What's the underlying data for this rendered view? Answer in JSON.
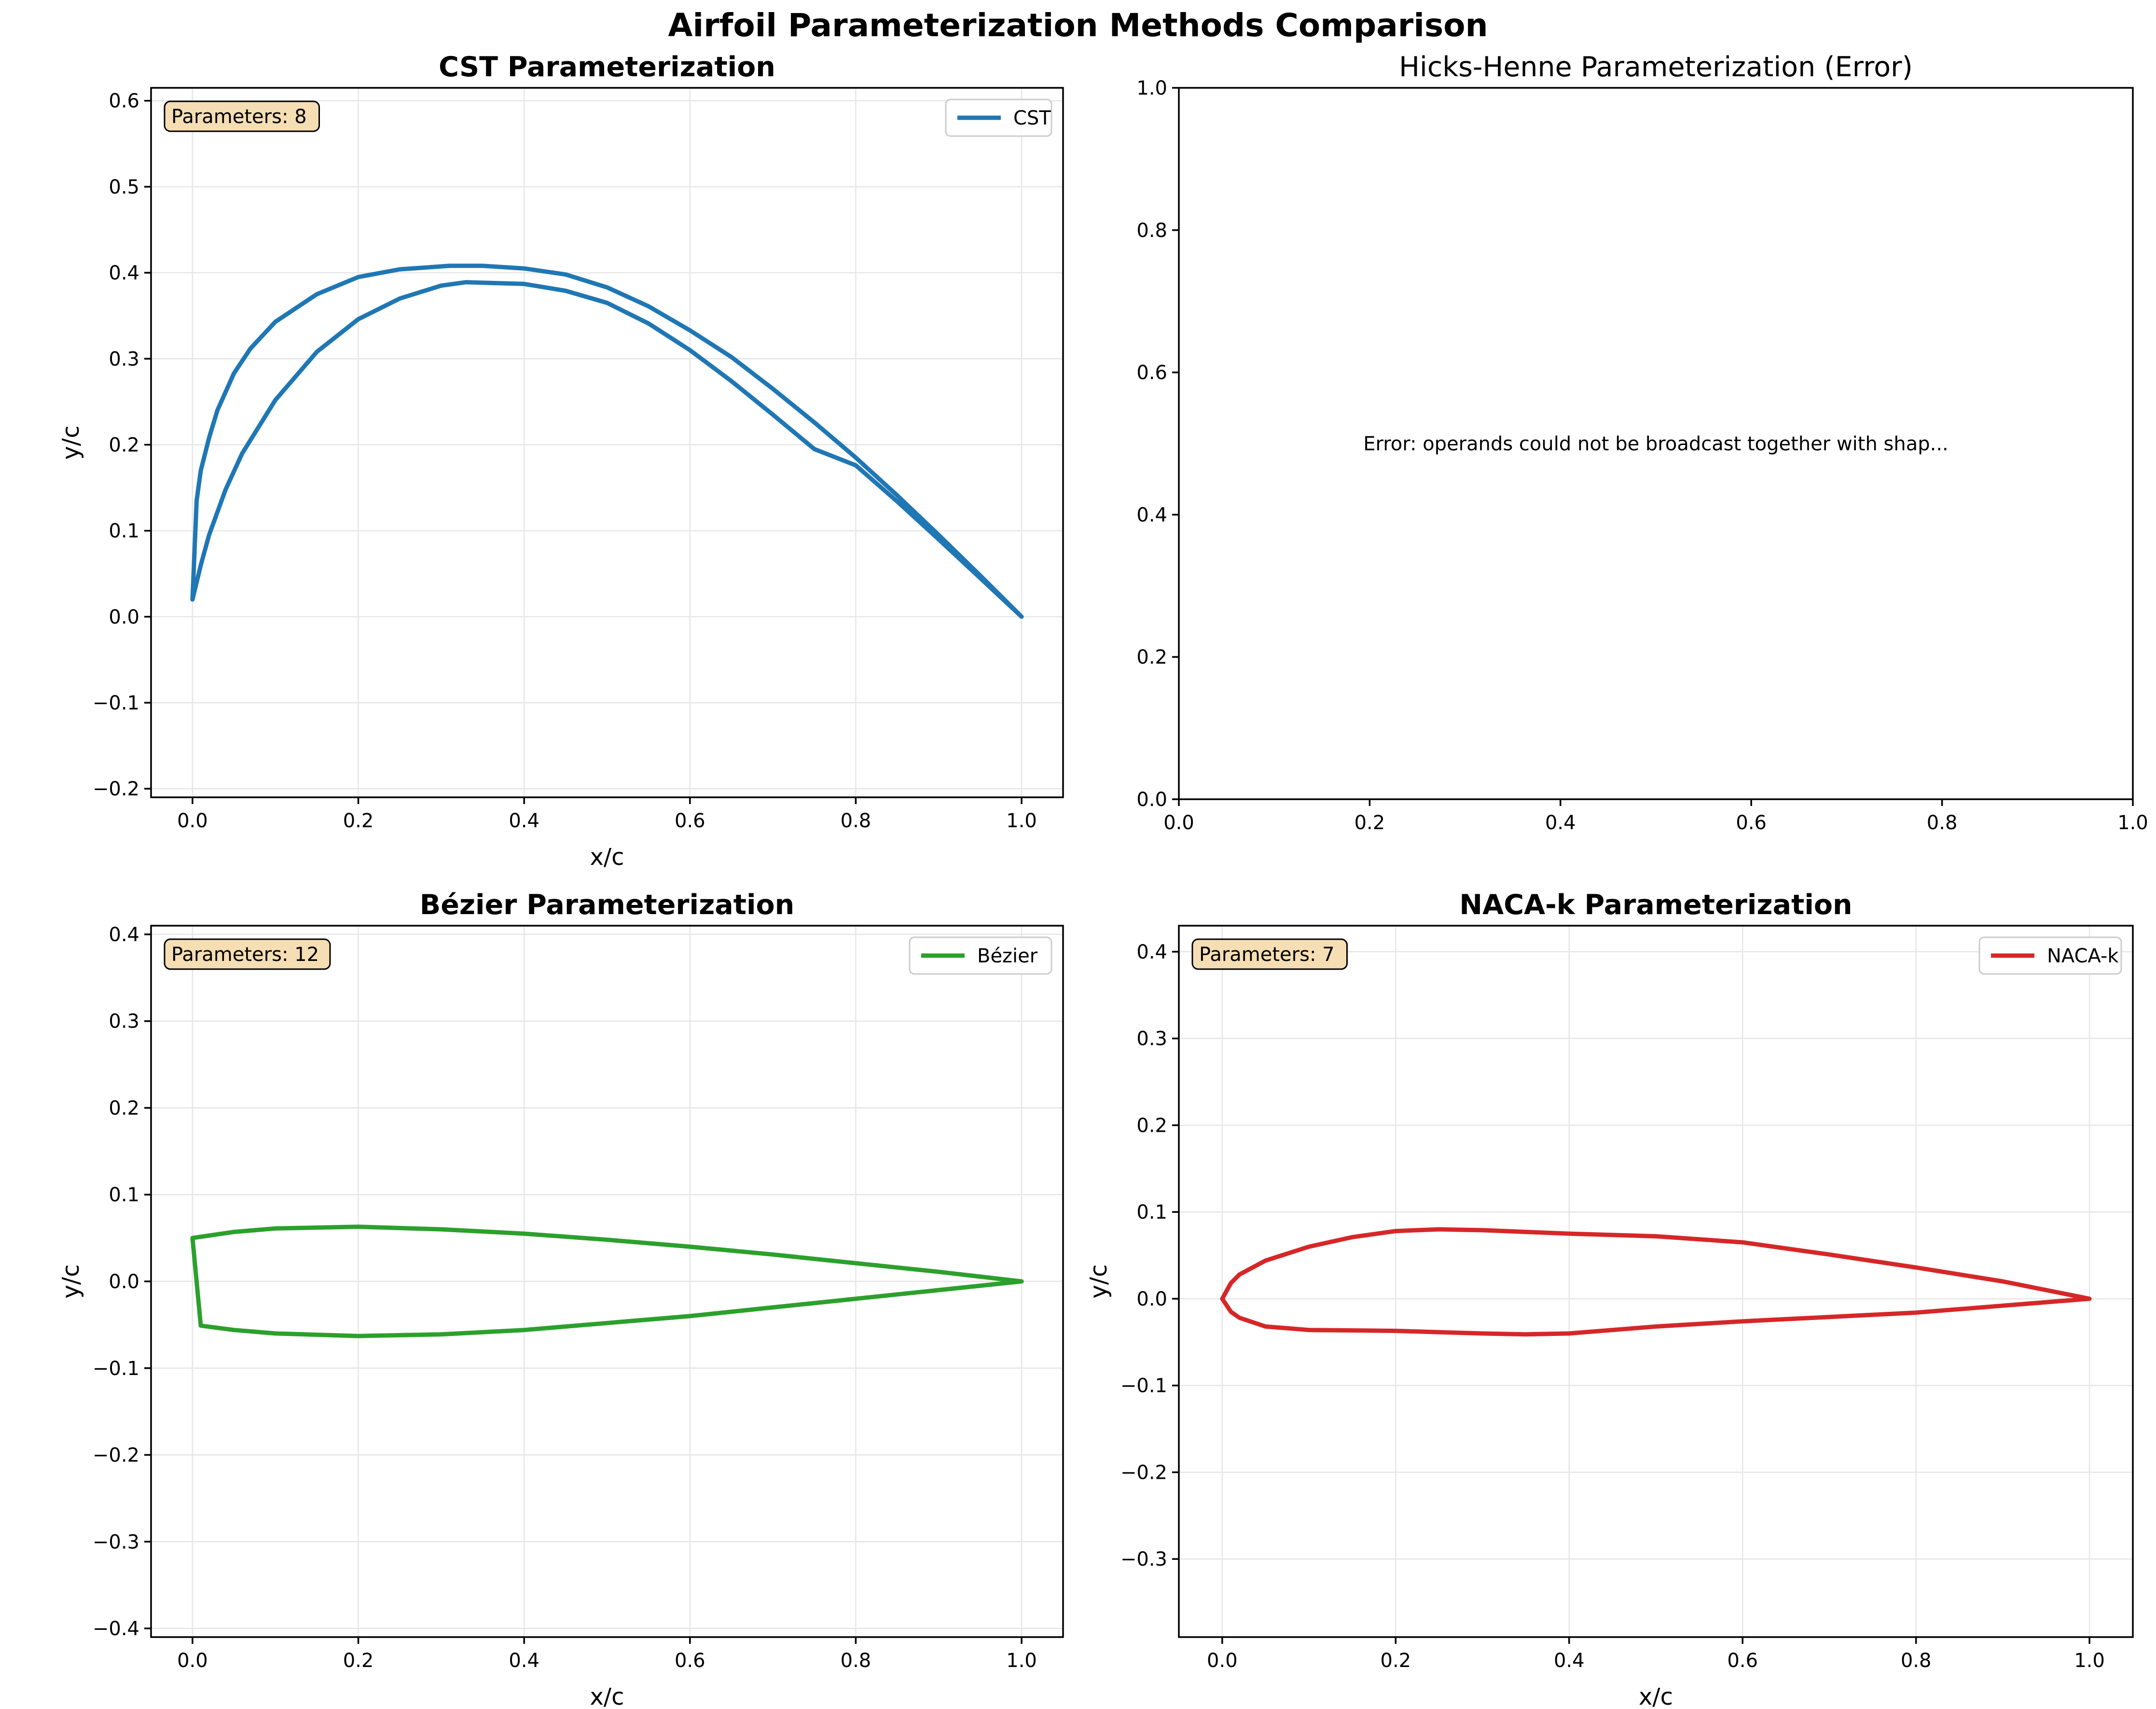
{
  "figure": {
    "title": "Airfoil Parameterization Methods Comparison"
  },
  "colors": {
    "cst": "#1f77b4",
    "bezier": "#2ca02c",
    "naca": "#d62728",
    "badge_fill": "#f5deb3"
  },
  "chart_data": [
    {
      "id": "cst",
      "type": "line",
      "title": "CST Parameterization",
      "title_bold": true,
      "xlabel": "x/c",
      "ylabel": "y/c",
      "xlim": [
        -0.05,
        1.05
      ],
      "ylim": [
        -0.21,
        0.615
      ],
      "xticks": [
        0.0,
        0.2,
        0.4,
        0.6,
        0.8,
        1.0
      ],
      "xtick_labels": [
        "0.0",
        "0.2",
        "0.4",
        "0.6",
        "0.8",
        "1.0"
      ],
      "yticks": [
        -0.2,
        -0.1,
        0.0,
        0.1,
        0.2,
        0.3,
        0.4,
        0.5,
        0.6
      ],
      "ytick_labels": [
        "−0.2",
        "−0.1",
        "0.0",
        "0.1",
        "0.2",
        "0.3",
        "0.4",
        "0.5",
        "0.6"
      ],
      "grid": true,
      "legend": "upper right",
      "annotation": "Parameters: 8",
      "series": [
        {
          "name": "CST",
          "color": "#1f77b4",
          "x": [
            1.0,
            0.95,
            0.9,
            0.85,
            0.8,
            0.75,
            0.7,
            0.65,
            0.6,
            0.55,
            0.5,
            0.45,
            0.4,
            0.35,
            0.31,
            0.25,
            0.2,
            0.15,
            0.1,
            0.07,
            0.05,
            0.03,
            0.02,
            0.01,
            0.005,
            0.0,
            0.005,
            0.01,
            0.02,
            0.04,
            0.06,
            0.1,
            0.15,
            0.2,
            0.25,
            0.3,
            0.33,
            0.4,
            0.45,
            0.5,
            0.55,
            0.6,
            0.65,
            0.7,
            0.75,
            0.8,
            0.85,
            0.9,
            0.95,
            1.0
          ],
          "y": [
            0.0,
            0.048,
            0.095,
            0.141,
            0.185,
            0.226,
            0.265,
            0.302,
            0.333,
            0.361,
            0.383,
            0.398,
            0.405,
            0.408,
            0.408,
            0.404,
            0.395,
            0.375,
            0.343,
            0.312,
            0.283,
            0.24,
            0.208,
            0.17,
            0.135,
            0.02,
            0.04,
            0.06,
            0.095,
            0.148,
            0.19,
            0.252,
            0.308,
            0.346,
            0.37,
            0.385,
            0.389,
            0.387,
            0.379,
            0.365,
            0.341,
            0.31,
            0.274,
            0.235,
            0.195,
            0.176,
            0.134,
            0.09,
            0.045,
            0.0
          ]
        }
      ]
    },
    {
      "id": "hicks",
      "type": "line",
      "title": "Hicks-Henne Parameterization (Error)",
      "title_bold": false,
      "xlabel": "",
      "ylabel": "",
      "xlim": [
        0.0,
        1.0
      ],
      "ylim": [
        0.0,
        1.0
      ],
      "xticks": [
        0.0,
        0.2,
        0.4,
        0.6,
        0.8,
        1.0
      ],
      "xtick_labels": [
        "0.0",
        "0.2",
        "0.4",
        "0.6",
        "0.8",
        "1.0"
      ],
      "yticks": [
        0.0,
        0.2,
        0.4,
        0.6,
        0.8,
        1.0
      ],
      "ytick_labels": [
        "0.0",
        "0.2",
        "0.4",
        "0.6",
        "0.8",
        "1.0"
      ],
      "grid": false,
      "error_text": "Error: operands could not be broadcast together with shap...",
      "series": []
    },
    {
      "id": "bezier",
      "type": "line",
      "title": "Bézier Parameterization",
      "title_bold": true,
      "xlabel": "x/c",
      "ylabel": "y/c",
      "xlim": [
        -0.05,
        1.05
      ],
      "ylim": [
        -0.41,
        0.41
      ],
      "xticks": [
        0.0,
        0.2,
        0.4,
        0.6,
        0.8,
        1.0
      ],
      "xtick_labels": [
        "0.0",
        "0.2",
        "0.4",
        "0.6",
        "0.8",
        "1.0"
      ],
      "yticks": [
        -0.4,
        -0.3,
        -0.2,
        -0.1,
        0.0,
        0.1,
        0.2,
        0.3,
        0.4
      ],
      "ytick_labels": [
        "−0.4",
        "−0.3",
        "−0.2",
        "−0.1",
        "0.0",
        "0.1",
        "0.2",
        "0.3",
        "0.4"
      ],
      "grid": true,
      "legend": "upper right",
      "annotation": "Parameters: 12",
      "series": [
        {
          "name": "Bézier",
          "color": "#2ca02c",
          "x": [
            1.0,
            0.9,
            0.8,
            0.7,
            0.6,
            0.5,
            0.4,
            0.3,
            0.2,
            0.1,
            0.05,
            0.0,
            0.01,
            0.05,
            0.1,
            0.2,
            0.3,
            0.4,
            0.5,
            0.6,
            0.7,
            0.8,
            0.9,
            1.0
          ],
          "y": [
            0.0,
            0.011,
            0.021,
            0.031,
            0.04,
            0.048,
            0.055,
            0.06,
            0.063,
            0.061,
            0.057,
            0.05,
            -0.051,
            -0.056,
            -0.06,
            -0.063,
            -0.061,
            -0.056,
            -0.048,
            -0.04,
            -0.03,
            -0.02,
            -0.01,
            0.0
          ]
        }
      ]
    },
    {
      "id": "naca",
      "type": "line",
      "title": "NACA-k Parameterization",
      "title_bold": true,
      "xlabel": "x/c",
      "ylabel": "y/c",
      "xlim": [
        -0.05,
        1.05
      ],
      "ylim": [
        -0.39,
        0.43
      ],
      "xticks": [
        0.0,
        0.2,
        0.4,
        0.6,
        0.8,
        1.0
      ],
      "xtick_labels": [
        "0.0",
        "0.2",
        "0.4",
        "0.6",
        "0.8",
        "1.0"
      ],
      "yticks": [
        -0.3,
        -0.2,
        -0.1,
        0.0,
        0.1,
        0.2,
        0.3,
        0.4
      ],
      "ytick_labels": [
        "−0.3",
        "−0.2",
        "−0.1",
        "0.0",
        "0.1",
        "0.2",
        "0.3",
        "0.4"
      ],
      "grid": true,
      "legend": "upper right",
      "annotation": "Parameters: 7",
      "series": [
        {
          "name": "NACA-k",
          "color": "#d62728",
          "x": [
            1.0,
            0.9,
            0.8,
            0.7,
            0.6,
            0.5,
            0.4,
            0.35,
            0.3,
            0.25,
            0.2,
            0.15,
            0.1,
            0.05,
            0.02,
            0.01,
            0.0,
            0.01,
            0.02,
            0.05,
            0.1,
            0.2,
            0.3,
            0.35,
            0.4,
            0.5,
            0.6,
            0.7,
            0.8,
            0.9,
            1.0
          ],
          "y": [
            0.0,
            0.02,
            0.036,
            0.051,
            0.065,
            0.072,
            0.075,
            0.077,
            0.079,
            0.08,
            0.078,
            0.071,
            0.06,
            0.044,
            0.028,
            0.018,
            0.0,
            -0.015,
            -0.022,
            -0.032,
            -0.036,
            -0.037,
            -0.04,
            -0.041,
            -0.04,
            -0.032,
            -0.026,
            -0.021,
            -0.016,
            -0.008,
            0.0
          ]
        }
      ]
    }
  ]
}
